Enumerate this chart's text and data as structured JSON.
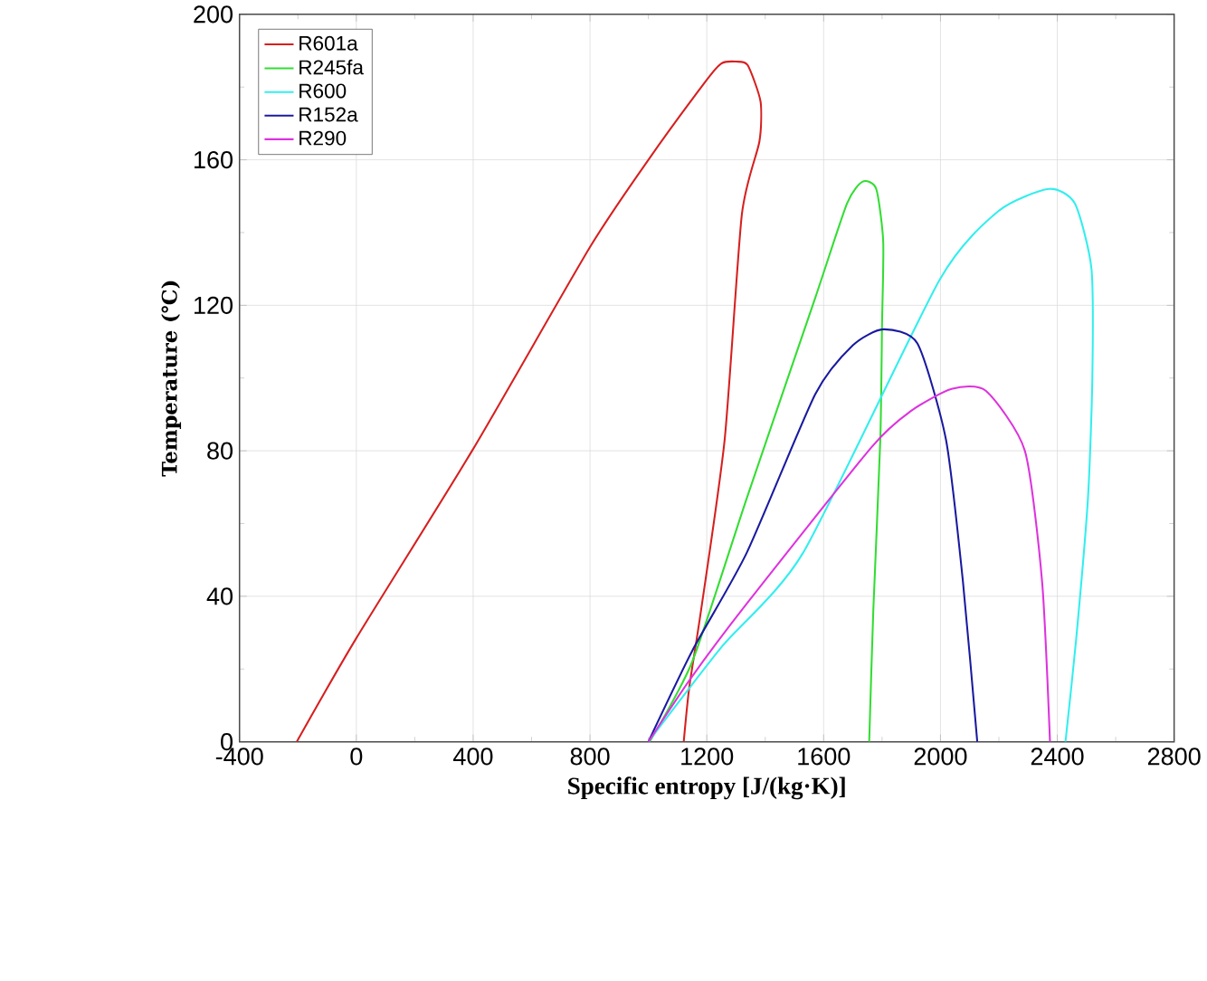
{
  "chart_data": {
    "type": "line",
    "xlabel": "Specific entropy [J/(kg·K)]",
    "ylabel": "Temperature (℃)",
    "xlim": [
      -400,
      2800
    ],
    "ylim": [
      0,
      200
    ],
    "xticks": [
      -400,
      0,
      400,
      800,
      1200,
      1600,
      2000,
      2400,
      2800
    ],
    "yticks": [
      0,
      40,
      80,
      120,
      160,
      200
    ],
    "grid": true,
    "legend": "top left",
    "marker": "none",
    "line_style": "solid",
    "series": [
      {
        "name": "R601a",
        "color": "#d62020",
        "x": [
          -204,
          0,
          400,
          800,
          1000,
          1200,
          1250,
          1300,
          1340,
          1384,
          1380,
          1320,
          1261,
          1180,
          1140,
          1121
        ],
        "values": [
          0,
          28.5,
          80.5,
          136,
          160,
          182,
          186.5,
          187,
          186,
          176,
          165,
          145,
          83,
          36,
          15,
          0
        ]
      },
      {
        "name": "R245fa",
        "color": "#33dd33",
        "x": [
          1004,
          1150,
          1337,
          1571,
          1680,
          1734,
          1780,
          1804,
          1800,
          1794,
          1770,
          1756
        ],
        "values": [
          0,
          22,
          67,
          122,
          148,
          154,
          152,
          137.5,
          115,
          83,
          36,
          0
        ]
      },
      {
        "name": "R600",
        "color": "#33eeee",
        "x": [
          1000,
          1250,
          1530,
          1997,
          2200,
          2371,
          2460,
          2517,
          2520,
          2505,
          2465,
          2428
        ],
        "values": [
          0,
          26,
          52,
          127,
          146,
          152,
          148,
          130,
          100,
          67,
          28.5,
          0
        ]
      },
      {
        "name": "R152a",
        "color": "#1a1aa0",
        "x": [
          1000,
          1150,
          1337,
          1571,
          1700,
          1804,
          1921,
          2019,
          2077,
          2126
        ],
        "values": [
          0,
          25,
          52,
          95.5,
          109,
          113.4,
          109.5,
          83,
          44,
          0
        ]
      },
      {
        "name": "R290",
        "color": "#dd33dd",
        "x": [
          1000,
          1150,
          1337,
          1764,
          1900,
          2038,
          2155,
          2289,
          2348,
          2375
        ],
        "values": [
          0,
          18,
          38,
          81,
          91,
          97,
          96.5,
          80,
          44,
          0
        ]
      }
    ]
  }
}
